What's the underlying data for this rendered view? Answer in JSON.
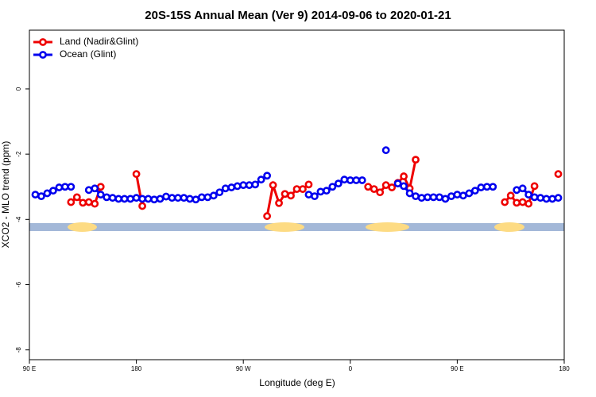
{
  "chart_data": {
    "type": "line",
    "title": "20S-15S Annual Mean (Ver 9)   2014-09-06 to 2020-01-21",
    "x_label": "Longitude (deg E)",
    "y_label": "XCO2 - MLO trend (ppm)",
    "xlim": [
      90,
      540
    ],
    "ylim": [
      -8.3,
      1.8
    ],
    "xticks": [
      {
        "value": 90,
        "label": "90 E"
      },
      180,
      {
        "value": 270,
        "label": "90 W"
      },
      {
        "value": 360,
        "label": "0"
      },
      {
        "value": 450,
        "label": "90 E"
      },
      {
        "value": 540,
        "label": "180"
      }
    ],
    "yticks": [
      -8,
      -6,
      -4,
      -2,
      0
    ],
    "legend": "topleft",
    "x": [
      95,
      100,
      105,
      110,
      115,
      120,
      125,
      130,
      135,
      140,
      145,
      150,
      155,
      160,
      165,
      170,
      175,
      180,
      185,
      190,
      195,
      200,
      205,
      210,
      215,
      220,
      225,
      230,
      235,
      240,
      245,
      250,
      255,
      260,
      265,
      270,
      275,
      280,
      285,
      290,
      295,
      300,
      305,
      310,
      315,
      320,
      325,
      330,
      335,
      340,
      345,
      350,
      355,
      360,
      365,
      370,
      375,
      380,
      385,
      390,
      395,
      400,
      405,
      410,
      415,
      420,
      425,
      430,
      435,
      440,
      445,
      450,
      455,
      460,
      465,
      470,
      475,
      480,
      485,
      490,
      495,
      500,
      505,
      510,
      515,
      520,
      525,
      530,
      535
    ],
    "series": [
      {
        "name": "Land (Nadir&Glint)",
        "color": "#ee0000",
        "values": [
          null,
          null,
          null,
          null,
          null,
          null,
          -3.47,
          -3.32,
          -3.49,
          -3.47,
          -3.52,
          -3.0,
          null,
          null,
          null,
          null,
          null,
          -2.61,
          -3.59,
          null,
          null,
          null,
          null,
          null,
          null,
          null,
          null,
          null,
          null,
          null,
          null,
          null,
          null,
          null,
          null,
          null,
          null,
          null,
          null,
          -3.9,
          -2.95,
          -3.5,
          -3.22,
          -3.27,
          -3.07,
          -3.07,
          -2.93,
          null,
          null,
          null,
          null,
          null,
          null,
          null,
          null,
          null,
          -3.0,
          -3.07,
          -3.17,
          -2.95,
          -3.02,
          -2.88,
          -2.68,
          -3.05,
          -2.17,
          null,
          null,
          null,
          null,
          null,
          null,
          null,
          null,
          null,
          null,
          null,
          null,
          null,
          null,
          -3.47,
          -3.27,
          -3.49,
          -3.47,
          -3.52,
          -2.98,
          null,
          null,
          null,
          -2.61
        ]
      },
      {
        "name": "Ocean (Glint)",
        "color": "#0000ee",
        "values": [
          -3.24,
          -3.29,
          -3.2,
          -3.12,
          -3.02,
          -3.0,
          -3.0,
          null,
          null,
          -3.1,
          -3.05,
          -3.24,
          -3.32,
          -3.34,
          -3.37,
          -3.37,
          -3.37,
          -3.34,
          -3.37,
          -3.37,
          -3.39,
          -3.37,
          -3.3,
          -3.34,
          -3.34,
          -3.34,
          -3.37,
          -3.39,
          -3.32,
          -3.32,
          -3.27,
          -3.17,
          -3.05,
          -3.02,
          -2.98,
          -2.95,
          -2.95,
          -2.93,
          -2.78,
          -2.66,
          null,
          null,
          null,
          null,
          null,
          null,
          -3.24,
          -3.29,
          -3.15,
          -3.12,
          -3.0,
          -2.9,
          -2.78,
          -2.8,
          -2.8,
          -2.8,
          null,
          null,
          null,
          -1.88,
          null,
          -2.9,
          -2.98,
          -3.2,
          -3.29,
          -3.34,
          -3.32,
          -3.32,
          -3.32,
          -3.37,
          -3.29,
          -3.24,
          -3.27,
          -3.2,
          -3.12,
          -3.02,
          -3.0,
          -3.0,
          null,
          null,
          null,
          -3.1,
          -3.05,
          -3.24,
          -3.32,
          -3.34,
          -3.37,
          -3.37,
          -3.34
        ]
      }
    ]
  }
}
